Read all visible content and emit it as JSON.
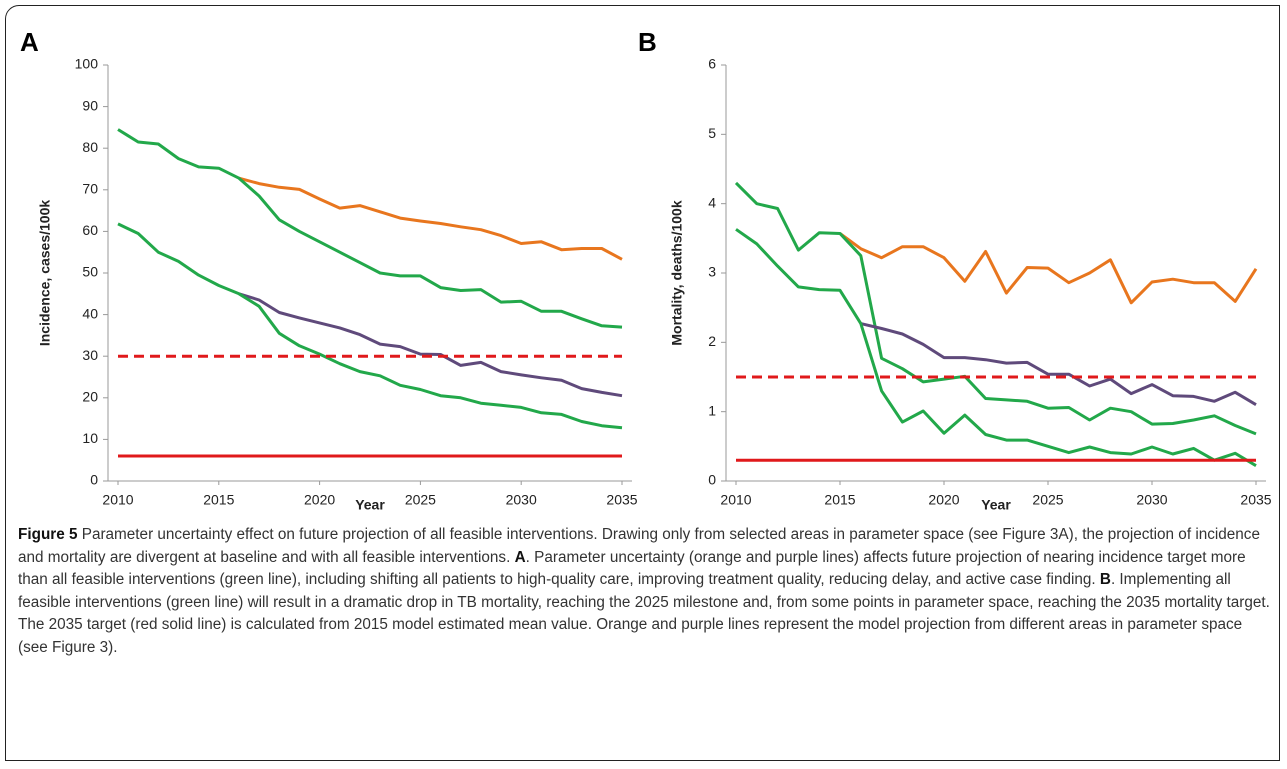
{
  "chart_data": [
    {
      "type": "line",
      "panel": "A",
      "xlabel": "Year",
      "ylabel": "Incidence, cases/100k",
      "x": [
        2010,
        2011,
        2012,
        2013,
        2014,
        2015,
        2016,
        2017,
        2018,
        2019,
        2020,
        2021,
        2022,
        2023,
        2024,
        2025,
        2026,
        2027,
        2028,
        2029,
        2030,
        2031,
        2032,
        2033,
        2034,
        2035
      ],
      "xlim": [
        2010,
        2035
      ],
      "xticks": [
        2010,
        2015,
        2020,
        2025,
        2030,
        2035
      ],
      "ylim": [
        0,
        100
      ],
      "yticks": [
        0,
        10,
        20,
        30,
        40,
        50,
        60,
        70,
        80,
        90,
        100
      ],
      "series": [
        {
          "color": "#e8761e",
          "style": "solid",
          "values": [
            null,
            null,
            null,
            null,
            null,
            null,
            72.8,
            71.5,
            70.6,
            70.1,
            67.8,
            65.6,
            66.2,
            64.7,
            63.2,
            62.5,
            61.9,
            61.1,
            60.4,
            59,
            57.1,
            57.5,
            55.6,
            55.9,
            55.9,
            53.3
          ]
        },
        {
          "color": "#22a84a",
          "style": "solid",
          "values": [
            84.5,
            81.5,
            81,
            77.5,
            75.5,
            75.2,
            72.8,
            68.5,
            62.8,
            60,
            57.5,
            55,
            52.5,
            50,
            49.3,
            49.3,
            46.5,
            45.8,
            46,
            43,
            43.2,
            40.8,
            40.8,
            39,
            37.3,
            37
          ]
        },
        {
          "color": "#5f4a7b",
          "style": "solid",
          "values": [
            null,
            null,
            null,
            null,
            null,
            null,
            45,
            43.5,
            40.5,
            39.2,
            38,
            36.8,
            35.2,
            32.9,
            32.3,
            30.5,
            30.4,
            27.8,
            28.5,
            26.3,
            25.5,
            24.8,
            24.2,
            22.2,
            21.3,
            20.5
          ]
        },
        {
          "color": "#22a84a",
          "style": "solid",
          "values": [
            61.8,
            59.5,
            55,
            52.8,
            49.5,
            47,
            45,
            42,
            35.5,
            32.5,
            30.5,
            28.2,
            26.3,
            25.3,
            23,
            22,
            20.5,
            20,
            18.7,
            18.2,
            17.7,
            16.4,
            16,
            14.3,
            13.3,
            12.8
          ]
        },
        {
          "color": "#e0191b",
          "style": "dashed",
          "values": [
            30,
            30,
            30,
            30,
            30,
            30,
            30,
            30,
            30,
            30,
            30,
            30,
            30,
            30,
            30,
            30,
            30,
            30,
            30,
            30,
            30,
            30,
            30,
            30,
            30,
            30
          ]
        },
        {
          "color": "#e0191b",
          "style": "solid",
          "values": [
            6,
            6,
            6,
            6,
            6,
            6,
            6,
            6,
            6,
            6,
            6,
            6,
            6,
            6,
            6,
            6,
            6,
            6,
            6,
            6,
            6,
            6,
            6,
            6,
            6,
            6
          ]
        }
      ]
    },
    {
      "type": "line",
      "panel": "B",
      "xlabel": "Year",
      "ylabel": "Mortality, deaths/100k",
      "x": [
        2010,
        2011,
        2012,
        2013,
        2014,
        2015,
        2016,
        2017,
        2018,
        2019,
        2020,
        2021,
        2022,
        2023,
        2024,
        2025,
        2026,
        2027,
        2028,
        2029,
        2030,
        2031,
        2032,
        2033,
        2034,
        2035
      ],
      "xlim": [
        2010,
        2035
      ],
      "xticks": [
        2010,
        2015,
        2020,
        2025,
        2030,
        2035
      ],
      "ylim": [
        0,
        6
      ],
      "yticks": [
        0,
        1,
        2,
        3,
        4,
        5,
        6
      ],
      "series": [
        {
          "color": "#e8761e",
          "style": "solid",
          "values": [
            null,
            null,
            null,
            null,
            null,
            3.57,
            3.35,
            3.22,
            3.38,
            3.38,
            3.22,
            2.88,
            3.31,
            2.71,
            3.08,
            3.07,
            2.86,
            3.0,
            3.19,
            2.57,
            2.87,
            2.91,
            2.86,
            2.86,
            2.59,
            3.06
          ]
        },
        {
          "color": "#22a84a",
          "style": "solid",
          "values": [
            4.3,
            4.0,
            3.93,
            3.33,
            3.58,
            3.57,
            3.25,
            1.77,
            1.62,
            1.43,
            1.47,
            1.51,
            1.19,
            1.17,
            1.15,
            1.05,
            1.06,
            0.88,
            1.05,
            1.0,
            0.82,
            0.83,
            0.88,
            0.94,
            0.8,
            0.68
          ]
        },
        {
          "color": "#5f4a7b",
          "style": "solid",
          "values": [
            null,
            null,
            null,
            null,
            null,
            null,
            2.27,
            2.2,
            2.12,
            1.97,
            1.78,
            1.78,
            1.75,
            1.7,
            1.71,
            1.54,
            1.54,
            1.37,
            1.47,
            1.26,
            1.39,
            1.23,
            1.22,
            1.15,
            1.28,
            1.1
          ]
        },
        {
          "color": "#22a84a",
          "style": "solid",
          "values": [
            3.63,
            3.42,
            3.1,
            2.8,
            2.76,
            2.75,
            2.27,
            1.3,
            0.85,
            1.01,
            0.69,
            0.95,
            0.67,
            0.59,
            0.59,
            0.5,
            0.41,
            0.49,
            0.41,
            0.39,
            0.49,
            0.39,
            0.47,
            0.3,
            0.4,
            0.22
          ]
        },
        {
          "color": "#e0191b",
          "style": "dashed",
          "values": [
            1.5,
            1.5,
            1.5,
            1.5,
            1.5,
            1.5,
            1.5,
            1.5,
            1.5,
            1.5,
            1.5,
            1.5,
            1.5,
            1.5,
            1.5,
            1.5,
            1.5,
            1.5,
            1.5,
            1.5,
            1.5,
            1.5,
            1.5,
            1.5,
            1.5,
            1.5
          ]
        },
        {
          "color": "#e0191b",
          "style": "solid",
          "values": [
            0.3,
            0.3,
            0.3,
            0.3,
            0.3,
            0.3,
            0.3,
            0.3,
            0.3,
            0.3,
            0.3,
            0.3,
            0.3,
            0.3,
            0.3,
            0.3,
            0.3,
            0.3,
            0.3,
            0.3,
            0.3,
            0.3,
            0.3,
            0.3,
            0.3,
            0.3
          ]
        }
      ]
    }
  ],
  "caption": [
    {
      "text": "Figure 5",
      "bold": true
    },
    {
      "text": " Parameter uncertainty effect on future projection of all feasible interventions. Drawing only from selected areas in parameter space (see Figure 3A), the projection of incidence and mortality are divergent at baseline and with all feasible interventions. ",
      "bold": false
    },
    {
      "text": "A",
      "bold": true
    },
    {
      "text": ". Parameter uncertainty (orange and purple lines) affects future projection of nearing incidence target more than all feasible interventions (green line), including shifting all patients to high-quality care, improving treatment quality, reducing delay, and active case finding. ",
      "bold": false
    },
    {
      "text": "B",
      "bold": true
    },
    {
      "text": ". Implementing all feasible interventions (green line) will result in a dramatic drop in TB mortality, reaching the 2025 milestone and, from some points in parameter space, reaching the 2035 mortality target. The 2035 target (red solid line) is calculated from 2015 model estimated mean value. Orange and purple lines represent the model projection from different areas in parameter space (see Figure 3).",
      "bold": false
    }
  ]
}
